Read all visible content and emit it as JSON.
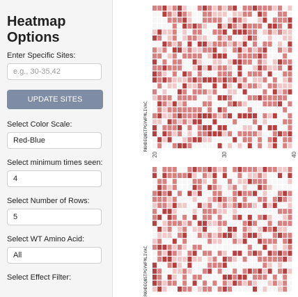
{
  "sidebar": {
    "title": "Heatmap Options",
    "sites_label": "Enter Specific Sites:",
    "sites_placeholder": "e.g., 30-35,42",
    "update_button": "UPDATE SITES",
    "color_label": "Select Color Scale:",
    "color_value": "Red-Blue",
    "min_label": "Select minimum times seen:",
    "min_value": "4",
    "rows_label": "Select Number of Rows:",
    "rows_value": "5",
    "wt_label": "Select WT Amino Acid:",
    "wt_value": "All",
    "effect_label": "Select Effect Filter:"
  },
  "heatmap_top": {
    "amino_acids": "RKHDEQNSTPGYWFMLIVAC",
    "x_ticks": [
      "20",
      "30",
      "40"
    ]
  },
  "heatmap_bottom": {
    "amino_acids": "RKHDEQNSTPGYWFMLIVAC"
  },
  "colors": {
    "button": "#7f8ca5",
    "strong": "#b5403f",
    "medium": "#d98080",
    "light": "#f0c8c8",
    "blank": "#f7f7f7"
  }
}
